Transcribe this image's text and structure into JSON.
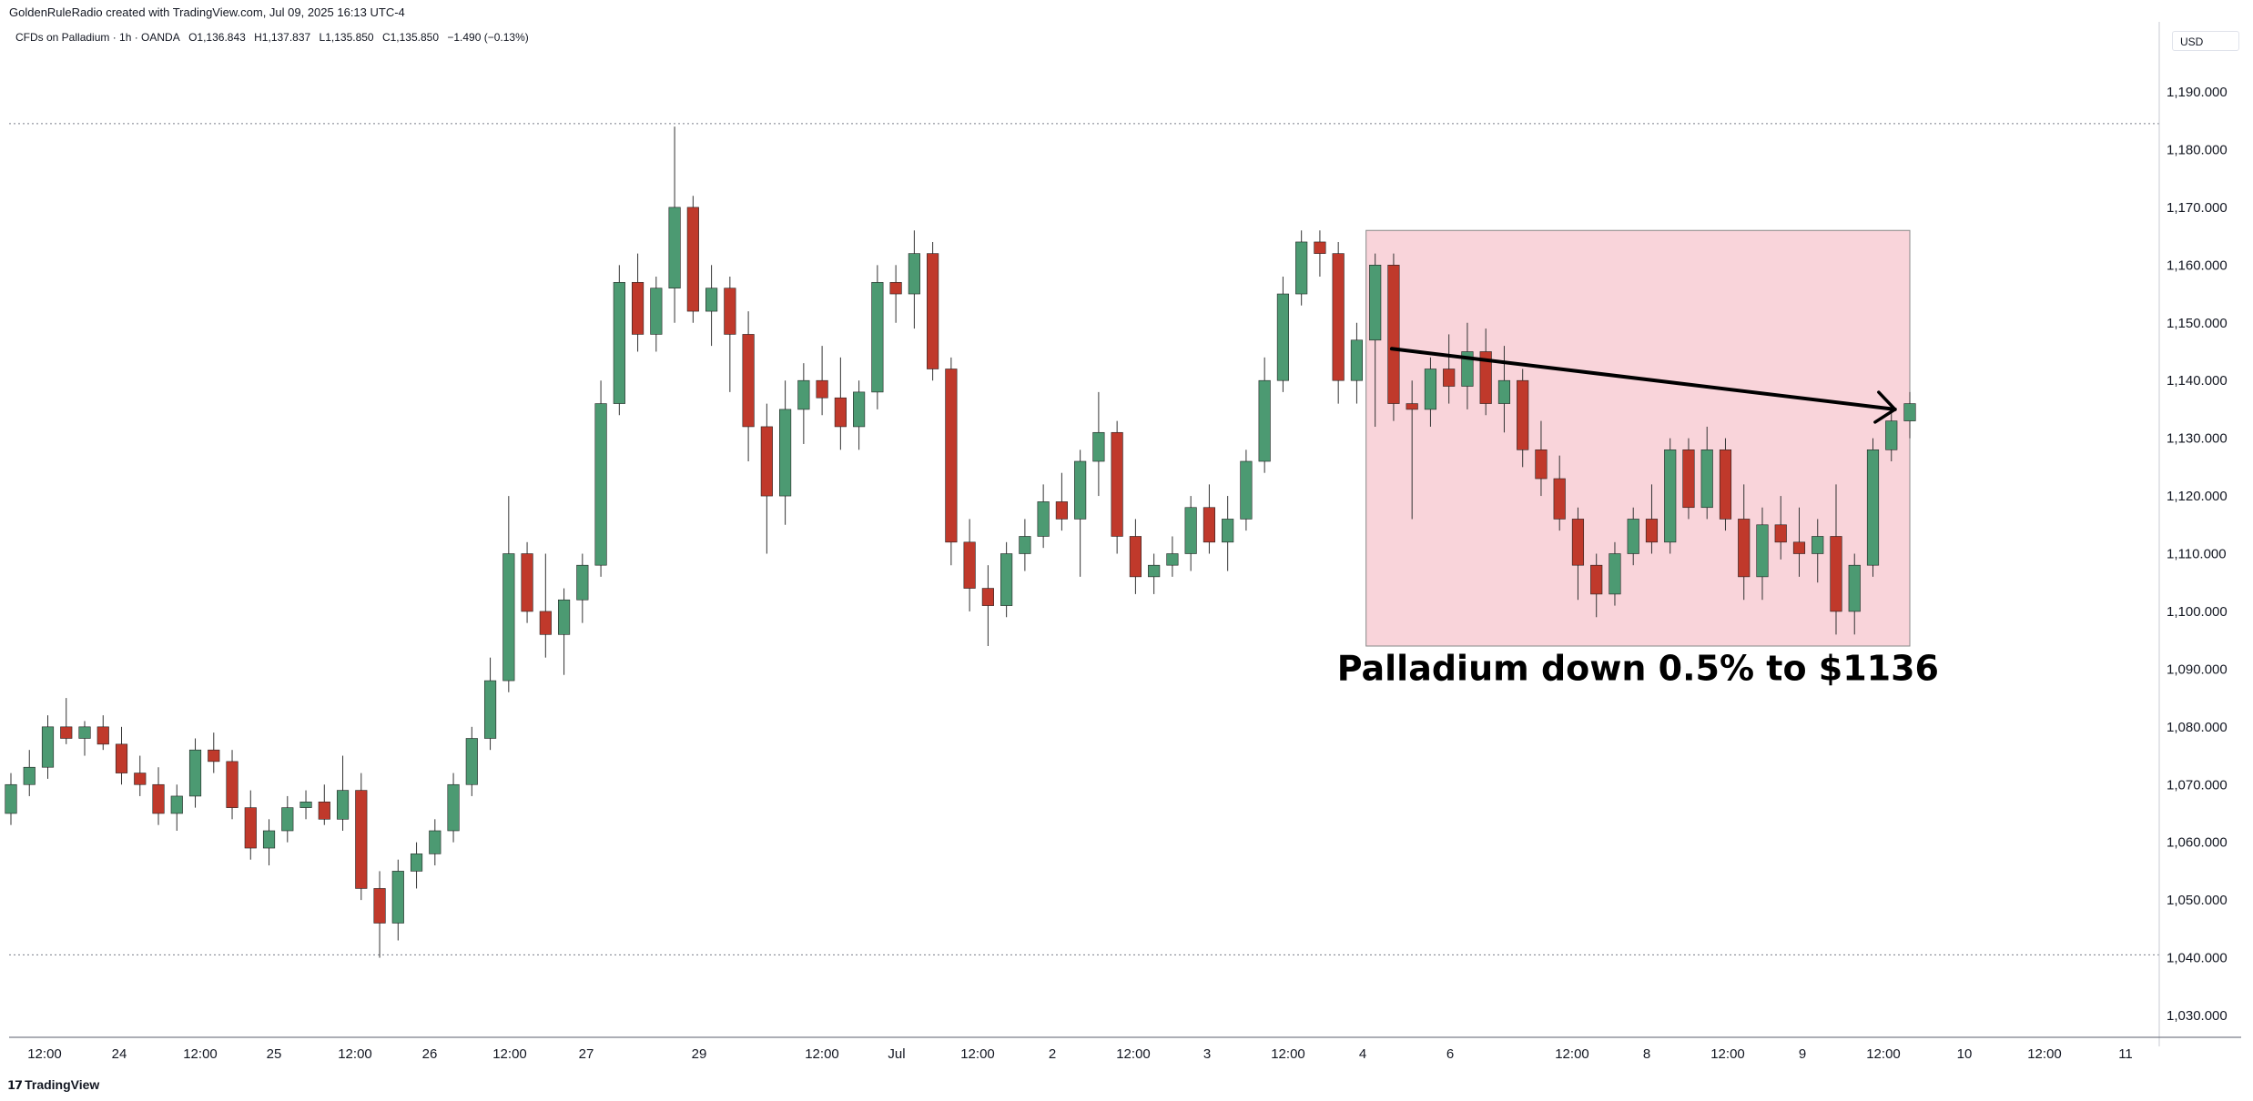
{
  "header": {
    "attribution": "GoldenRuleRadio created with TradingView.com, Jul 09, 2025 16:13 UTC-4"
  },
  "symbol": {
    "name": "CFDs on Palladium · 1h · OANDA",
    "open": "O1,136.843",
    "high": "H1,137.837",
    "low": "L1,135.850",
    "close": "C1,135.850",
    "change": "−1.490 (−0.13%)"
  },
  "currency": "USD",
  "footer": {
    "brand": "TradingView"
  },
  "colors": {
    "up": "#4c9a72",
    "down": "#c0392b",
    "box": "#f9d4da",
    "box_border": "#888888"
  },
  "chart_data": {
    "type": "candlestick",
    "title": "CFDs on Palladium · 1h · OANDA",
    "ylim": [
      1025,
      1205
    ],
    "y_ticks": [
      1030,
      1040,
      1050,
      1060,
      1070,
      1080,
      1090,
      1100,
      1110,
      1120,
      1130,
      1140,
      1150,
      1160,
      1170,
      1180,
      1190
    ],
    "y_tick_labels": [
      "1,030.000",
      "1,040.000",
      "1,050.000",
      "1,060.000",
      "1,070.000",
      "1,080.000",
      "1,090.000",
      "1,100.000",
      "1,110.000",
      "1,120.000",
      "1,130.000",
      "1,140.000",
      "1,150.000",
      "1,160.000",
      "1,170.000",
      "1,180.000",
      "1,190.000"
    ],
    "x_tick_labels": [
      "12:00",
      "24",
      "12:00",
      "25",
      "12:00",
      "26",
      "12:00",
      "27",
      "29",
      "12:00",
      "Jul",
      "12:00",
      "2",
      "12:00",
      "3",
      "12:00",
      "4",
      "6",
      "12:00",
      "8",
      "12:00",
      "9",
      "12:00",
      "10",
      "12:00",
      "11"
    ],
    "candles": [
      [
        1065,
        1072,
        1063,
        1070
      ],
      [
        1070,
        1076,
        1068,
        1073
      ],
      [
        1073,
        1082,
        1071,
        1080
      ],
      [
        1080,
        1085,
        1077,
        1078
      ],
      [
        1078,
        1081,
        1075,
        1080
      ],
      [
        1080,
        1082,
        1076,
        1077
      ],
      [
        1077,
        1080,
        1070,
        1072
      ],
      [
        1072,
        1075,
        1068,
        1070
      ],
      [
        1070,
        1073,
        1063,
        1065
      ],
      [
        1065,
        1070,
        1062,
        1068
      ],
      [
        1068,
        1078,
        1066,
        1076
      ],
      [
        1076,
        1079,
        1072,
        1074
      ],
      [
        1074,
        1076,
        1064,
        1066
      ],
      [
        1066,
        1069,
        1057,
        1059
      ],
      [
        1059,
        1064,
        1056,
        1062
      ],
      [
        1062,
        1068,
        1060,
        1066
      ],
      [
        1066,
        1069,
        1064,
        1067
      ],
      [
        1067,
        1070,
        1063,
        1064
      ],
      [
        1064,
        1075,
        1062,
        1069
      ],
      [
        1069,
        1072,
        1050,
        1052
      ],
      [
        1052,
        1055,
        1040,
        1046
      ],
      [
        1046,
        1057,
        1043,
        1055
      ],
      [
        1055,
        1060,
        1052,
        1058
      ],
      [
        1058,
        1064,
        1056,
        1062
      ],
      [
        1062,
        1072,
        1060,
        1070
      ],
      [
        1070,
        1080,
        1068,
        1078
      ],
      [
        1078,
        1092,
        1076,
        1088
      ],
      [
        1088,
        1120,
        1086,
        1110
      ],
      [
        1110,
        1112,
        1098,
        1100
      ],
      [
        1100,
        1110,
        1092,
        1096
      ],
      [
        1096,
        1104,
        1089,
        1102
      ],
      [
        1102,
        1110,
        1098,
        1108
      ],
      [
        1108,
        1140,
        1106,
        1136
      ],
      [
        1136,
        1160,
        1134,
        1157
      ],
      [
        1157,
        1162,
        1145,
        1148
      ],
      [
        1148,
        1158,
        1145,
        1156
      ],
      [
        1156,
        1184,
        1150,
        1170
      ],
      [
        1170,
        1172,
        1150,
        1152
      ],
      [
        1152,
        1160,
        1146,
        1156
      ],
      [
        1156,
        1158,
        1138,
        1148
      ],
      [
        1148,
        1152,
        1126,
        1132
      ],
      [
        1132,
        1136,
        1110,
        1120
      ],
      [
        1120,
        1140,
        1115,
        1135
      ],
      [
        1135,
        1143,
        1129,
        1140
      ],
      [
        1140,
        1146,
        1134,
        1137
      ],
      [
        1137,
        1144,
        1128,
        1132
      ],
      [
        1132,
        1140,
        1128,
        1138
      ],
      [
        1138,
        1160,
        1135,
        1157
      ],
      [
        1157,
        1160,
        1150,
        1155
      ],
      [
        1155,
        1166,
        1149,
        1162
      ],
      [
        1162,
        1164,
        1140,
        1142
      ],
      [
        1142,
        1144,
        1108,
        1112
      ],
      [
        1112,
        1116,
        1100,
        1104
      ],
      [
        1104,
        1108,
        1094,
        1101
      ],
      [
        1101,
        1112,
        1099,
        1110
      ],
      [
        1110,
        1116,
        1107,
        1113
      ],
      [
        1113,
        1122,
        1111,
        1119
      ],
      [
        1119,
        1124,
        1114,
        1116
      ],
      [
        1116,
        1128,
        1106,
        1126
      ],
      [
        1126,
        1138,
        1120,
        1131
      ],
      [
        1131,
        1133,
        1110,
        1113
      ],
      [
        1113,
        1116,
        1103,
        1106
      ],
      [
        1106,
        1110,
        1103,
        1108
      ],
      [
        1108,
        1113,
        1106,
        1110
      ],
      [
        1110,
        1120,
        1107,
        1118
      ],
      [
        1118,
        1122,
        1110,
        1112
      ],
      [
        1112,
        1120,
        1107,
        1116
      ],
      [
        1116,
        1128,
        1114,
        1126
      ],
      [
        1126,
        1144,
        1124,
        1140
      ],
      [
        1140,
        1158,
        1138,
        1155
      ],
      [
        1155,
        1166,
        1153,
        1164
      ],
      [
        1164,
        1166,
        1158,
        1162
      ],
      [
        1162,
        1164,
        1136,
        1140
      ],
      [
        1140,
        1150,
        1136,
        1147
      ],
      [
        1147,
        1162,
        1132,
        1160
      ],
      [
        1160,
        1162,
        1133,
        1136
      ],
      [
        1136,
        1140,
        1116,
        1135
      ],
      [
        1135,
        1144,
        1132,
        1142
      ],
      [
        1142,
        1148,
        1136,
        1139
      ],
      [
        1139,
        1150,
        1135,
        1145
      ],
      [
        1145,
        1149,
        1134,
        1136
      ],
      [
        1136,
        1146,
        1131,
        1140
      ],
      [
        1140,
        1142,
        1125,
        1128
      ],
      [
        1128,
        1133,
        1120,
        1123
      ],
      [
        1123,
        1127,
        1114,
        1116
      ],
      [
        1116,
        1118,
        1102,
        1108
      ],
      [
        1108,
        1110,
        1099,
        1103
      ],
      [
        1103,
        1112,
        1101,
        1110
      ],
      [
        1110,
        1118,
        1108,
        1116
      ],
      [
        1116,
        1122,
        1110,
        1112
      ],
      [
        1112,
        1130,
        1110,
        1128
      ],
      [
        1128,
        1130,
        1116,
        1118
      ],
      [
        1118,
        1132,
        1116,
        1128
      ],
      [
        1128,
        1130,
        1114,
        1116
      ],
      [
        1116,
        1122,
        1102,
        1106
      ],
      [
        1106,
        1118,
        1102,
        1115
      ],
      [
        1115,
        1120,
        1109,
        1112
      ],
      [
        1112,
        1118,
        1106,
        1110
      ],
      [
        1110,
        1116,
        1105,
        1113
      ],
      [
        1113,
        1122,
        1096,
        1100
      ],
      [
        1100,
        1110,
        1096,
        1108
      ],
      [
        1108,
        1130,
        1106,
        1128
      ],
      [
        1128,
        1136,
        1126,
        1133
      ],
      [
        1133,
        1138,
        1130,
        1136
      ]
    ],
    "trendline": {
      "start": [
        1145.5,
        1
      ],
      "end": [
        1135,
        1
      ],
      "arrow": true
    },
    "box": {
      "y_top": 1166,
      "y_bottom": 1094
    },
    "h_lines": [
      1184.5,
      1040.5
    ],
    "annotation": "Palladium down 0.5% to $1136"
  }
}
